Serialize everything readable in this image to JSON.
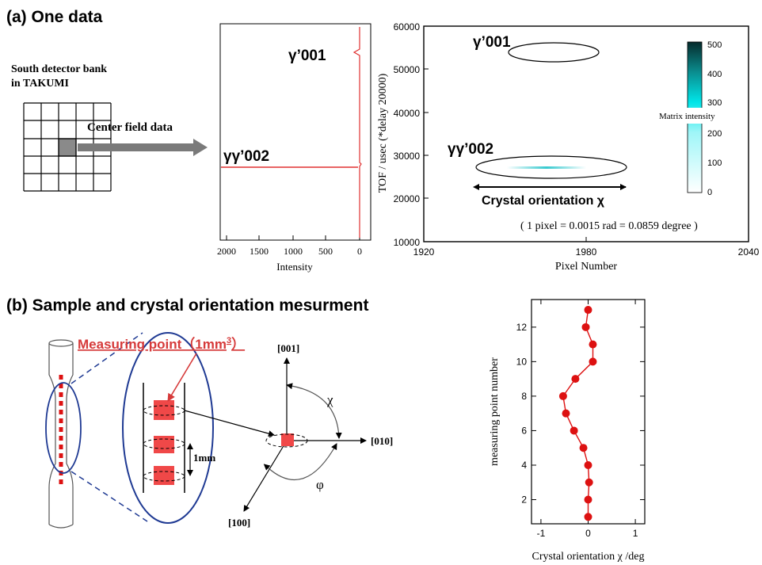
{
  "colors": {
    "red": "#d63a3a",
    "plot_red": "#e03030",
    "dot_red": "#dd1111",
    "navy": "#1f3a93",
    "grey_arrow": "#7a7a7a",
    "cyan": "#00e5e8",
    "black": "#000000"
  },
  "part_a": {
    "title": "(a) One data",
    "detector_label_1": "South detector bank",
    "detector_label_2": "in TAKUMI",
    "arrow_label": "Center field data"
  },
  "spectrum": {
    "xlabel": "Intensity",
    "xticks": [
      "2000",
      "1500",
      "1000",
      "500",
      "0"
    ],
    "peak_1": "γ’001",
    "peak_2": "γγ’002"
  },
  "tof_map": {
    "ylabel": "TOF / usec (*delay 20000)",
    "xlabel": "Pixel Number",
    "yticks": [
      "10000",
      "20000",
      "30000",
      "40000",
      "50000",
      "60000"
    ],
    "xticks": [
      "1920",
      "1980",
      "2040"
    ],
    "peak_1": "γ’001",
    "peak_2": "γγ’002",
    "orientation_label": "Crystal orientation χ",
    "pixel_note": "( 1 pixel = 0.0015 rad = 0.0859 degree )",
    "colorbar_label": "Matrix intensity",
    "colorbar_ticks": [
      "500",
      "400",
      "300",
      "200",
      "100",
      "0"
    ]
  },
  "part_b": {
    "title": "(b) Sample and crystal orientation mesurment",
    "measuring_point": "Measuring point（1mm",
    "measuring_point_sup": "3",
    "measuring_point_close": "）",
    "spacing_label": "1mm",
    "axis_001": "[001]",
    "axis_010": "[010]",
    "axis_100": "[100]",
    "angle_chi": "χ",
    "angle_phi": "φ"
  },
  "chart_data": {
    "type": "line",
    "xlabel": "Crystal orientation χ /deg",
    "ylabel": "measuring point number",
    "xlim": [
      -1.2,
      1.2
    ],
    "ylim": [
      0.6,
      13.6
    ],
    "xticks": [
      "-1",
      "0",
      "1"
    ],
    "yticks": [
      "2",
      "4",
      "6",
      "8",
      "10",
      "12"
    ],
    "points": [
      {
        "x": 0.0,
        "y": 1
      },
      {
        "x": 0.0,
        "y": 2
      },
      {
        "x": 0.02,
        "y": 3
      },
      {
        "x": 0.0,
        "y": 4
      },
      {
        "x": -0.1,
        "y": 5
      },
      {
        "x": -0.3,
        "y": 6
      },
      {
        "x": -0.47,
        "y": 7
      },
      {
        "x": -0.53,
        "y": 8
      },
      {
        "x": -0.27,
        "y": 9
      },
      {
        "x": 0.1,
        "y": 10
      },
      {
        "x": 0.1,
        "y": 11
      },
      {
        "x": -0.05,
        "y": 12
      },
      {
        "x": 0.0,
        "y": 13
      }
    ]
  }
}
